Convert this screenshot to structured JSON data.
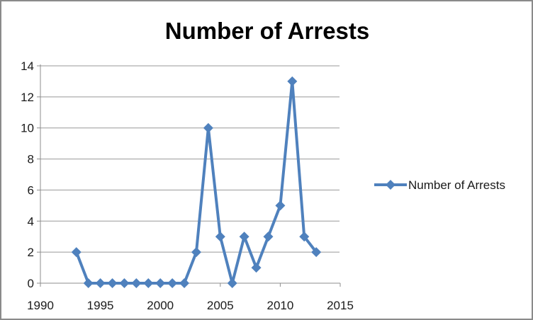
{
  "chart_data": {
    "type": "line",
    "title": "Number of Arrests",
    "x": [
      1993,
      1994,
      1995,
      1996,
      1997,
      1998,
      1999,
      2000,
      2001,
      2002,
      2003,
      2004,
      2005,
      2006,
      2007,
      2008,
      2009,
      2010,
      2011,
      2012,
      2013
    ],
    "series": [
      {
        "name": "Number of Arrests",
        "values": [
          2,
          0,
          0,
          0,
          0,
          0,
          0,
          0,
          0,
          0,
          2,
          10,
          3,
          0,
          3,
          1,
          3,
          5,
          13,
          3,
          2
        ]
      }
    ],
    "xlabel": "",
    "ylabel": "",
    "xlim": [
      1990,
      2015
    ],
    "ylim": [
      0,
      14
    ],
    "x_ticks": [
      1990,
      1995,
      2000,
      2005,
      2010,
      2015
    ],
    "y_ticks": [
      0,
      2,
      4,
      6,
      8,
      10,
      12,
      14
    ],
    "grid": "horizontal",
    "legend_position": "right",
    "marker": "diamond",
    "colors": {
      "series": "#4f81bd",
      "gridline": "#999999",
      "axis": "#8c8c8c",
      "tick_label": "#1a1a1a",
      "title": "#000000",
      "frame_border": "#8a8a8a"
    }
  }
}
